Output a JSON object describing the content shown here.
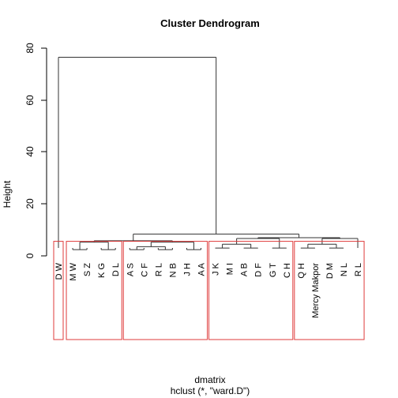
{
  "title": "Cluster Dendrogram",
  "xlabel": "dmatrix",
  "sublabel": "hclust (*, \"ward.D\")",
  "ylabel": "Height",
  "colors": {
    "line": "#333333",
    "box": "#df3b3b",
    "text": "#000000"
  },
  "chart_data": {
    "type": "dendrogram",
    "ylim": [
      0,
      80
    ],
    "yticks": [
      "0",
      "20",
      "40",
      "60",
      "80"
    ],
    "leaves": [
      "D W",
      "M W",
      "S Z",
      "K G",
      "D L",
      "A S",
      "C F",
      "R L",
      "N B",
      "J H",
      "A A",
      "J K",
      "M I",
      "A B",
      "D F",
      "G T",
      "C H",
      "Q H",
      "Mercy Makpor",
      "D M",
      "N L",
      "R L"
    ],
    "root_height": 76.5,
    "clusters": [
      {
        "members": [
          "D W"
        ],
        "join_height": null
      },
      {
        "members": [
          "M W",
          "S Z",
          "K G",
          "D L"
        ],
        "join_height": 5.3
      },
      {
        "members": [
          "A S",
          "C F",
          "R L",
          "N B",
          "J H",
          "A A"
        ],
        "join_height": 5.3
      },
      {
        "members": [
          "J K",
          "M I",
          "A B",
          "D F",
          "G T",
          "C H"
        ],
        "join_height": 6.7
      },
      {
        "members": [
          "Q H",
          "Mercy Makpor",
          "D M",
          "N L",
          "R L"
        ],
        "join_height": 6.7
      }
    ],
    "rect_hclust_k": 5
  }
}
